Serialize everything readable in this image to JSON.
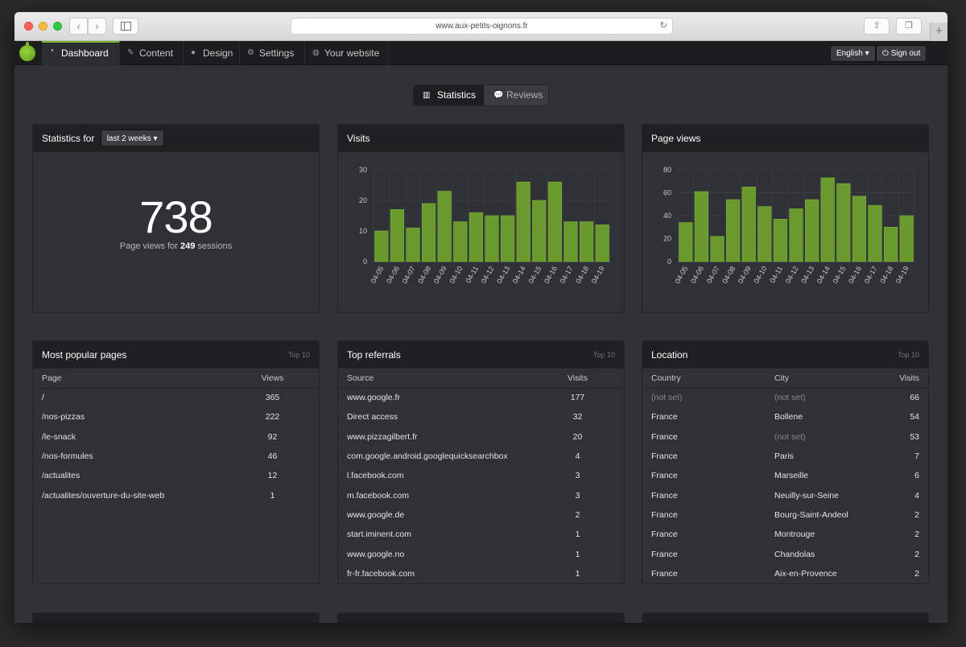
{
  "browser": {
    "url": "www.aux-petits-oignons.fr"
  },
  "nav": {
    "items": [
      {
        "label": "Dashboard",
        "icon": "dashboard-icon",
        "active": true
      },
      {
        "label": "Content",
        "icon": "pencil-icon",
        "active": false
      },
      {
        "label": "Design",
        "icon": "droplet-icon",
        "active": false
      },
      {
        "label": "Settings",
        "icon": "gear-icon",
        "active": false
      },
      {
        "label": "Your website",
        "icon": "globe-icon",
        "active": false
      }
    ],
    "language": "English",
    "signout": "Sign out"
  },
  "tabs": {
    "statistics": "Statistics",
    "reviews": "Reviews"
  },
  "summary": {
    "title": "Statistics for",
    "period": "last 2 weeks",
    "total": "738",
    "caption_pre": "Page views for",
    "sessions": "249",
    "caption_post": "sessions"
  },
  "chart_data": [
    {
      "type": "bar",
      "title": "Visits",
      "categories": [
        "04-05",
        "04-06",
        "04-07",
        "04-08",
        "04-09",
        "04-10",
        "04-11",
        "04-12",
        "04-13",
        "04-14",
        "04-15",
        "04-16",
        "04-17",
        "04-18",
        "04-19"
      ],
      "values": [
        10,
        17,
        11,
        19,
        23,
        13,
        16,
        15,
        15,
        26,
        20,
        26,
        13,
        13,
        12
      ],
      "ylim": [
        0,
        30
      ],
      "yticks": [
        0,
        10,
        20,
        30
      ],
      "grid": true,
      "color": "#6a9a2e"
    },
    {
      "type": "bar",
      "title": "Page views",
      "categories": [
        "04-05",
        "04-06",
        "04-07",
        "04-08",
        "04-09",
        "04-10",
        "04-11",
        "04-12",
        "04-13",
        "04-14",
        "04-15",
        "04-16",
        "04-17",
        "04-18",
        "04-19"
      ],
      "values": [
        34,
        61,
        22,
        54,
        65,
        48,
        37,
        46,
        54,
        73,
        68,
        57,
        49,
        30,
        40
      ],
      "ylim": [
        0,
        80
      ],
      "yticks": [
        0,
        20,
        40,
        60,
        80
      ],
      "grid": true,
      "color": "#6a9a2e"
    }
  ],
  "popular": {
    "title": "Most popular pages",
    "tag": "Top 10",
    "headers": [
      "Page",
      "Views"
    ],
    "rows": [
      [
        "/",
        "365"
      ],
      [
        "/nos-pizzas",
        "222"
      ],
      [
        "/le-snack",
        "92"
      ],
      [
        "/nos-formules",
        "46"
      ],
      [
        "/actualites",
        "12"
      ],
      [
        "/actualites/ouverture-du-site-web",
        "1"
      ]
    ]
  },
  "referrals": {
    "title": "Top referrals",
    "tag": "Top 10",
    "headers": [
      "Source",
      "Visits"
    ],
    "rows": [
      [
        "www.google.fr",
        "177"
      ],
      [
        "Direct access",
        "32"
      ],
      [
        "www.pizzagilbert.fr",
        "20"
      ],
      [
        "com.google.android.googlequicksearchbox",
        "4"
      ],
      [
        "l.facebook.com",
        "3"
      ],
      [
        "m.facebook.com",
        "3"
      ],
      [
        "www.google.de",
        "2"
      ],
      [
        "start.iminent.com",
        "1"
      ],
      [
        "www.google.no",
        "1"
      ],
      [
        "fr-fr.facebook.com",
        "1"
      ]
    ]
  },
  "location": {
    "title": "Location",
    "tag": "Top 10",
    "headers": [
      "Country",
      "City",
      "Visits"
    ],
    "rows": [
      [
        "(not set)",
        "(not set)",
        "66"
      ],
      [
        "France",
        "Bollene",
        "54"
      ],
      [
        "France",
        "(not set)",
        "53"
      ],
      [
        "France",
        "Paris",
        "7"
      ],
      [
        "France",
        "Marseille",
        "6"
      ],
      [
        "France",
        "Neuilly-sur-Seine",
        "4"
      ],
      [
        "France",
        "Bourg-Saint-Andeol",
        "2"
      ],
      [
        "France",
        "Montrouge",
        "2"
      ],
      [
        "France",
        "Chandolas",
        "2"
      ],
      [
        "France",
        "Aix-en-Provence",
        "2"
      ]
    ]
  }
}
